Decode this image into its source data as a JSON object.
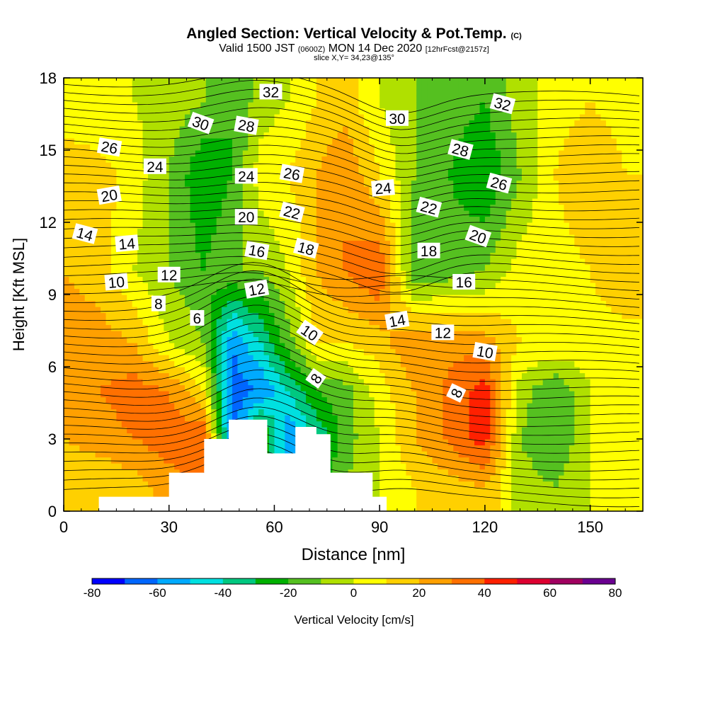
{
  "header": {
    "title": "Angled Section: Vertical Velocity & Pot.Temp.",
    "title_mark": "(C)",
    "valid_a": "Valid 1500 JST",
    "valid_b": "(0600Z)",
    "valid_c": "MON 14 Dec 2020",
    "valid_d": "[12hrFcst@2157z]",
    "slice": "slice X,Y= 34,23@135°"
  },
  "chart_data": {
    "type": "heatmap",
    "title": "Angled Section: Vertical Velocity & Pot.Temp.",
    "xlabel": "Distance [nm]",
    "ylabel": "Height [Kft MSL]",
    "xlim": [
      0,
      165
    ],
    "ylim": [
      0,
      18
    ],
    "xticks": [
      0,
      30,
      60,
      90,
      120,
      150
    ],
    "yticks": [
      0,
      3,
      6,
      9,
      12,
      15,
      18
    ],
    "colorbar": {
      "label": "Vertical Velocity [cm/s]",
      "ticks": [
        -80,
        -60,
        -40,
        -20,
        0,
        20,
        40,
        60,
        80
      ],
      "colors": [
        "#0000ff",
        "#0066ff",
        "#00aaff",
        "#00e0e0",
        "#00c880",
        "#00b000",
        "#55c020",
        "#b0e000",
        "#ffff00",
        "#ffd000",
        "#ffa000",
        "#ff7000",
        "#ff2000",
        "#dd0030",
        "#a00060",
        "#6a0090"
      ]
    },
    "velocity_field": [
      [
        0,
        0,
        0,
        -5,
        -10,
        -20,
        -5,
        0,
        10,
        15,
        0,
        -10,
        -20,
        -5,
        5,
        10,
        5
      ],
      [
        20,
        15,
        5,
        -10,
        -30,
        -20,
        5,
        10,
        20,
        30,
        10,
        -10,
        -30,
        -10,
        10,
        20,
        10
      ],
      [
        20,
        15,
        0,
        -10,
        -20,
        -10,
        -10,
        0,
        20,
        30,
        40,
        -20,
        -10,
        5,
        5,
        10,
        20
      ],
      [
        25,
        25,
        20,
        0,
        -10,
        -60,
        -40,
        -15,
        10,
        10,
        15,
        30,
        25,
        10,
        10,
        5,
        5
      ],
      [
        30,
        30,
        35,
        30,
        10,
        -65,
        -60,
        -40,
        -20,
        -15,
        5,
        20,
        45,
        -5,
        -20,
        0,
        10
      ],
      [
        20,
        25,
        30,
        35,
        40,
        -70,
        -10,
        -60,
        -40,
        -15,
        0,
        20,
        45,
        -10,
        -20,
        0,
        5
      ],
      [
        10,
        10,
        15,
        25,
        30,
        -60,
        -50,
        -45,
        -25,
        -10,
        0,
        10,
        20,
        -5,
        -10,
        0,
        0
      ]
    ],
    "velocity_field_heights": [
      17,
      14,
      10,
      7,
      5,
      3,
      1
    ],
    "velocity_field_distances": [
      0,
      10,
      20,
      30,
      40,
      48,
      56,
      64,
      72,
      80,
      90,
      100,
      120,
      130,
      140,
      150,
      160
    ],
    "terrain": [
      [
        10,
        0.6
      ],
      [
        20,
        0.6
      ],
      [
        30,
        1.6
      ],
      [
        40,
        3.0
      ],
      [
        47,
        3.8
      ],
      [
        52,
        3.8
      ],
      [
        58,
        2.4
      ],
      [
        62,
        2.4
      ],
      [
        66,
        3.5
      ],
      [
        72,
        3.2
      ],
      [
        76,
        1.6
      ],
      [
        88,
        0.6
      ],
      [
        92,
        0.3
      ]
    ],
    "theta_contour_levels": [
      6,
      8,
      10,
      12,
      14,
      16,
      18,
      20,
      22,
      24,
      26,
      28,
      30,
      32
    ],
    "contour_labels": [
      {
        "text": "32",
        "x": 59,
        "y": 17.4,
        "r": 0
      },
      {
        "text": "30",
        "x": 39,
        "y": 16.1,
        "r": 20
      },
      {
        "text": "28",
        "x": 52,
        "y": 16.0,
        "r": 10
      },
      {
        "text": "26",
        "x": 13,
        "y": 15.1,
        "r": 10
      },
      {
        "text": "24",
        "x": 26,
        "y": 14.3,
        "r": 0
      },
      {
        "text": "24",
        "x": 52,
        "y": 13.9,
        "r": 0
      },
      {
        "text": "26",
        "x": 65,
        "y": 14.0,
        "r": 10
      },
      {
        "text": "20",
        "x": 13,
        "y": 13.1,
        "r": -10
      },
      {
        "text": "20",
        "x": 52,
        "y": 12.2,
        "r": 0
      },
      {
        "text": "22",
        "x": 65,
        "y": 12.4,
        "r": 15
      },
      {
        "text": "14",
        "x": 6,
        "y": 11.5,
        "r": 15
      },
      {
        "text": "14",
        "x": 18,
        "y": 11.1,
        "r": -5
      },
      {
        "text": "16",
        "x": 55,
        "y": 10.8,
        "r": 10
      },
      {
        "text": "18",
        "x": 69,
        "y": 10.9,
        "r": 15
      },
      {
        "text": "12",
        "x": 30,
        "y": 9.8,
        "r": 0
      },
      {
        "text": "10",
        "x": 15,
        "y": 9.5,
        "r": -5
      },
      {
        "text": "12",
        "x": 55,
        "y": 9.2,
        "r": -10
      },
      {
        "text": "8",
        "x": 27,
        "y": 8.6,
        "r": 0
      },
      {
        "text": "6",
        "x": 38,
        "y": 8.0,
        "r": 0
      },
      {
        "text": "10",
        "x": 70,
        "y": 7.4,
        "r": 35
      },
      {
        "text": "8",
        "x": 72,
        "y": 5.5,
        "r": -55
      },
      {
        "text": "32",
        "x": 125,
        "y": 16.9,
        "r": 15
      },
      {
        "text": "30",
        "x": 95,
        "y": 16.3,
        "r": 0
      },
      {
        "text": "28",
        "x": 113,
        "y": 15.0,
        "r": 15
      },
      {
        "text": "24",
        "x": 91,
        "y": 13.4,
        "r": -5
      },
      {
        "text": "26",
        "x": 124,
        "y": 13.6,
        "r": 15
      },
      {
        "text": "22",
        "x": 104,
        "y": 12.6,
        "r": 15
      },
      {
        "text": "20",
        "x": 118,
        "y": 11.4,
        "r": 20
      },
      {
        "text": "18",
        "x": 104,
        "y": 10.8,
        "r": 0
      },
      {
        "text": "16",
        "x": 114,
        "y": 9.5,
        "r": 0
      },
      {
        "text": "14",
        "x": 95,
        "y": 7.9,
        "r": -10
      },
      {
        "text": "12",
        "x": 108,
        "y": 7.4,
        "r": 0
      },
      {
        "text": "10",
        "x": 120,
        "y": 6.6,
        "r": 10
      },
      {
        "text": "8",
        "x": 112,
        "y": 4.9,
        "r": -65
      }
    ]
  }
}
